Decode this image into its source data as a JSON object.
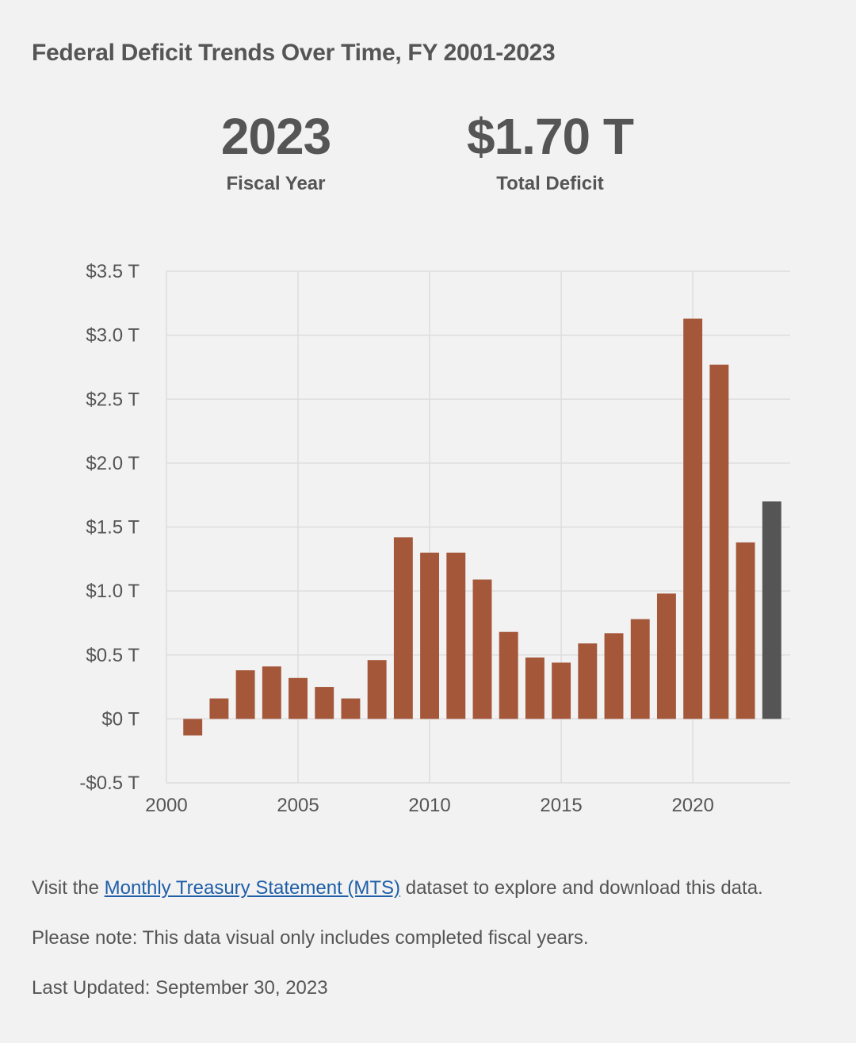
{
  "header": {
    "title": "Federal Deficit Trends Over Time, FY 2001-2023"
  },
  "kpis": {
    "year_value": "2023",
    "year_label": "Fiscal Year",
    "deficit_value": "$1.70 T",
    "deficit_label": "Total Deficit"
  },
  "chart_data": {
    "type": "bar",
    "title": "Federal Deficit Trends Over Time, FY 2001-2023",
    "xlabel": "",
    "ylabel": "",
    "x": [
      2001,
      2002,
      2003,
      2004,
      2005,
      2006,
      2007,
      2008,
      2009,
      2010,
      2011,
      2012,
      2013,
      2014,
      2015,
      2016,
      2017,
      2018,
      2019,
      2020,
      2021,
      2022,
      2023
    ],
    "values": [
      -0.13,
      0.16,
      0.38,
      0.41,
      0.32,
      0.25,
      0.16,
      0.46,
      1.42,
      1.3,
      1.3,
      1.09,
      0.68,
      0.48,
      0.44,
      0.59,
      0.67,
      0.78,
      0.98,
      3.13,
      2.77,
      1.38,
      1.7
    ],
    "highlight_year": 2023,
    "bar_color": "#a5573a",
    "highlight_color": "#555555",
    "ylim": [
      -0.5,
      3.5
    ],
    "xlim": [
      2000,
      2023.7
    ],
    "yticks": [
      -0.5,
      0,
      0.5,
      1.0,
      1.5,
      2.0,
      2.5,
      3.0,
      3.5
    ],
    "ytick_labels": [
      "-$0.5 T",
      "$0 T",
      "$0.5 T",
      "$1.0 T",
      "$1.5 T",
      "$2.0 T",
      "$2.5 T",
      "$3.0 T",
      "$3.5 T"
    ],
    "xticks": [
      2000,
      2005,
      2010,
      2015,
      2020
    ],
    "xtick_labels": [
      "2000",
      "2005",
      "2010",
      "2015",
      "2020"
    ],
    "grid": true
  },
  "footer": {
    "visit_prefix": "Visit the ",
    "link_text": "Monthly Treasury Statement (MTS)",
    "visit_suffix": " dataset to explore and download this data.",
    "note": "Please note: This data visual only includes completed fiscal years.",
    "updated": "Last Updated: September 30, 2023"
  },
  "colors": {
    "background": "#f2f2f2",
    "text": "#555555",
    "link": "#1f5fa8",
    "grid": "#dddddd"
  }
}
